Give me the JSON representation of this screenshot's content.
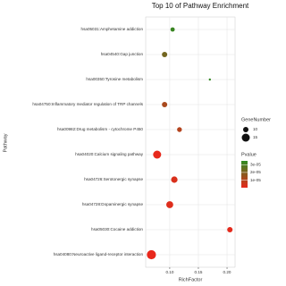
{
  "chart_data": {
    "type": "scatter",
    "title": "Top 10 of Pathway Enrichment",
    "x_label": "RichFactor",
    "y_label": "Pathway",
    "categories": [
      "hsa05031:Amphetamine addiction",
      "hsa04540:Gap junction",
      "hsa00350:Tyrosine metabolism",
      "hsa04750:Inflammatory mediator regulation of TRP channels",
      "hsa00982:Drug metabolism - cytochrome P450",
      "hsa04020:Calcium signaling pathway",
      "hsa04726:Serotonergic synapse",
      "hsa04728:Dopaminergic synapse",
      "hsa05030:Cocaine addiction",
      "hsa04080:Neuroactive ligand-receptor interaction"
    ],
    "values": [
      0.105,
      0.091,
      0.17,
      0.091,
      0.117,
      0.078,
      0.108,
      0.1,
      0.205,
      0.068
    ],
    "sizes": [
      8,
      10,
      4,
      10,
      9,
      15,
      12,
      13,
      10,
      17
    ],
    "pvalues": [
      3.3e-05,
      2.2e-05,
      3.4e-05,
      1.2e-05,
      1e-05,
      4e-07,
      3e-06,
      2e-06,
      1e-06,
      2e-07
    ],
    "xlim": [
      0.058,
      0.214
    ],
    "xticks": [
      {
        "value": 0.1,
        "label": "0.10"
      },
      {
        "value": 0.15,
        "label": "0.15"
      },
      {
        "value": 0.2,
        "label": "0.20"
      }
    ],
    "size_legend_title": "GeneNumber",
    "size_ticks": [
      10,
      15
    ],
    "color_legend_title": "Pvalue",
    "color_lim": [
      2e-07,
      3.5e-05
    ],
    "color_ticks": [
      {
        "value": 3e-05,
        "label": "3e-05"
      },
      {
        "value": 2e-05,
        "label": "2e-05"
      },
      {
        "value": 1e-05,
        "label": "1e-05"
      }
    ],
    "color_low": "#e8281c",
    "color_high": "#2e8b22",
    "grid": true
  }
}
